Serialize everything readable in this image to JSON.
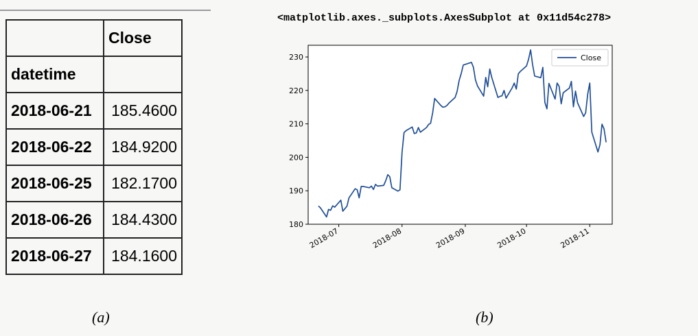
{
  "table": {
    "column_header": "Close",
    "index_name": "datetime",
    "rows": [
      {
        "date": "2018-06-21",
        "close": "185.4600"
      },
      {
        "date": "2018-06-22",
        "close": "184.9200"
      },
      {
        "date": "2018-06-25",
        "close": "182.1700"
      },
      {
        "date": "2018-06-26",
        "close": "184.4300"
      },
      {
        "date": "2018-06-27",
        "close": "184.1600"
      }
    ]
  },
  "repr_text": "<matplotlib.axes._subplots.AxesSubplot at 0x11d54c278>",
  "captions": {
    "a": "(a)",
    "b": "(b)"
  },
  "chart_data": {
    "type": "line",
    "xlabel": "",
    "ylabel": "",
    "ylim": [
      180,
      233.5
    ],
    "xlim": [
      "2018-06-16",
      "2018-11-12"
    ],
    "yticks": [
      180,
      190,
      200,
      210,
      220,
      230
    ],
    "xticks": [
      "2018-07-01",
      "2018-08-01",
      "2018-09-01",
      "2018-10-01",
      "2018-11-01"
    ],
    "xtick_labels": [
      "2018-07",
      "2018-08",
      "2018-09",
      "2018-10",
      "2018-11"
    ],
    "legend": {
      "position": "top-right",
      "entries": [
        "Close"
      ]
    },
    "grid": false,
    "series": [
      {
        "name": "Close",
        "color": "#1f4e96",
        "points": [
          [
            "2018-06-21",
            185.46
          ],
          [
            "2018-06-22",
            184.92
          ],
          [
            "2018-06-25",
            182.17
          ],
          [
            "2018-06-26",
            184.43
          ],
          [
            "2018-06-27",
            184.16
          ],
          [
            "2018-06-28",
            185.5
          ],
          [
            "2018-06-29",
            185.1
          ],
          [
            "2018-07-02",
            187.2
          ],
          [
            "2018-07-03",
            183.9
          ],
          [
            "2018-07-05",
            185.4
          ],
          [
            "2018-07-06",
            187.9
          ],
          [
            "2018-07-09",
            190.6
          ],
          [
            "2018-07-10",
            190.3
          ],
          [
            "2018-07-11",
            187.9
          ],
          [
            "2018-07-12",
            191.3
          ],
          [
            "2018-07-13",
            191.3
          ],
          [
            "2018-07-16",
            190.9
          ],
          [
            "2018-07-17",
            191.4
          ],
          [
            "2018-07-18",
            190.4
          ],
          [
            "2018-07-19",
            191.9
          ],
          [
            "2018-07-20",
            191.4
          ],
          [
            "2018-07-23",
            191.6
          ],
          [
            "2018-07-24",
            193.0
          ],
          [
            "2018-07-25",
            194.8
          ],
          [
            "2018-07-26",
            194.2
          ],
          [
            "2018-07-27",
            190.9
          ],
          [
            "2018-07-30",
            189.9
          ],
          [
            "2018-07-31",
            190.3
          ],
          [
            "2018-08-01",
            201.5
          ],
          [
            "2018-08-02",
            207.4
          ],
          [
            "2018-08-03",
            207.99
          ],
          [
            "2018-08-06",
            209.07
          ],
          [
            "2018-08-07",
            207.1
          ],
          [
            "2018-08-08",
            207.3
          ],
          [
            "2018-08-09",
            208.9
          ],
          [
            "2018-08-10",
            207.5
          ],
          [
            "2018-08-13",
            208.9
          ],
          [
            "2018-08-14",
            209.8
          ],
          [
            "2018-08-15",
            210.2
          ],
          [
            "2018-08-16",
            213.3
          ],
          [
            "2018-08-17",
            217.6
          ],
          [
            "2018-08-20",
            215.5
          ],
          [
            "2018-08-21",
            215.0
          ],
          [
            "2018-08-22",
            215.1
          ],
          [
            "2018-08-23",
            215.5
          ],
          [
            "2018-08-24",
            216.2
          ],
          [
            "2018-08-27",
            217.9
          ],
          [
            "2018-08-28",
            219.7
          ],
          [
            "2018-08-29",
            222.98
          ],
          [
            "2018-08-30",
            225.03
          ],
          [
            "2018-08-31",
            227.6
          ],
          [
            "2018-09-04",
            228.4
          ],
          [
            "2018-09-05",
            226.9
          ],
          [
            "2018-09-06",
            223.1
          ],
          [
            "2018-09-07",
            221.3
          ],
          [
            "2018-09-10",
            218.3
          ],
          [
            "2018-09-11",
            223.9
          ],
          [
            "2018-09-12",
            221.1
          ],
          [
            "2018-09-13",
            226.4
          ],
          [
            "2018-09-14",
            223.8
          ],
          [
            "2018-09-17",
            217.9
          ],
          [
            "2018-09-18",
            218.2
          ],
          [
            "2018-09-19",
            218.4
          ],
          [
            "2018-09-20",
            220.0
          ],
          [
            "2018-09-21",
            217.7
          ],
          [
            "2018-09-24",
            220.8
          ],
          [
            "2018-09-25",
            222.2
          ],
          [
            "2018-09-26",
            220.4
          ],
          [
            "2018-09-27",
            224.95
          ],
          [
            "2018-09-28",
            225.7
          ],
          [
            "2018-10-01",
            227.3
          ],
          [
            "2018-10-02",
            229.3
          ],
          [
            "2018-10-03",
            232.1
          ],
          [
            "2018-10-04",
            227.7
          ],
          [
            "2018-10-05",
            224.3
          ],
          [
            "2018-10-08",
            223.8
          ],
          [
            "2018-10-09",
            226.9
          ],
          [
            "2018-10-10",
            216.4
          ],
          [
            "2018-10-11",
            214.5
          ],
          [
            "2018-10-12",
            222.1
          ],
          [
            "2018-10-15",
            217.4
          ],
          [
            "2018-10-16",
            222.2
          ],
          [
            "2018-10-17",
            221.2
          ],
          [
            "2018-10-18",
            216.0
          ],
          [
            "2018-10-19",
            219.3
          ],
          [
            "2018-10-22",
            220.7
          ],
          [
            "2018-10-23",
            222.7
          ],
          [
            "2018-10-24",
            215.1
          ],
          [
            "2018-10-25",
            219.8
          ],
          [
            "2018-10-26",
            216.3
          ],
          [
            "2018-10-29",
            212.2
          ],
          [
            "2018-10-30",
            213.3
          ],
          [
            "2018-10-31",
            218.9
          ],
          [
            "2018-11-01",
            222.2
          ],
          [
            "2018-11-02",
            207.5
          ],
          [
            "2018-11-05",
            201.6
          ],
          [
            "2018-11-06",
            203.8
          ],
          [
            "2018-11-07",
            209.9
          ],
          [
            "2018-11-08",
            208.5
          ],
          [
            "2018-11-09",
            204.5
          ]
        ]
      }
    ]
  }
}
